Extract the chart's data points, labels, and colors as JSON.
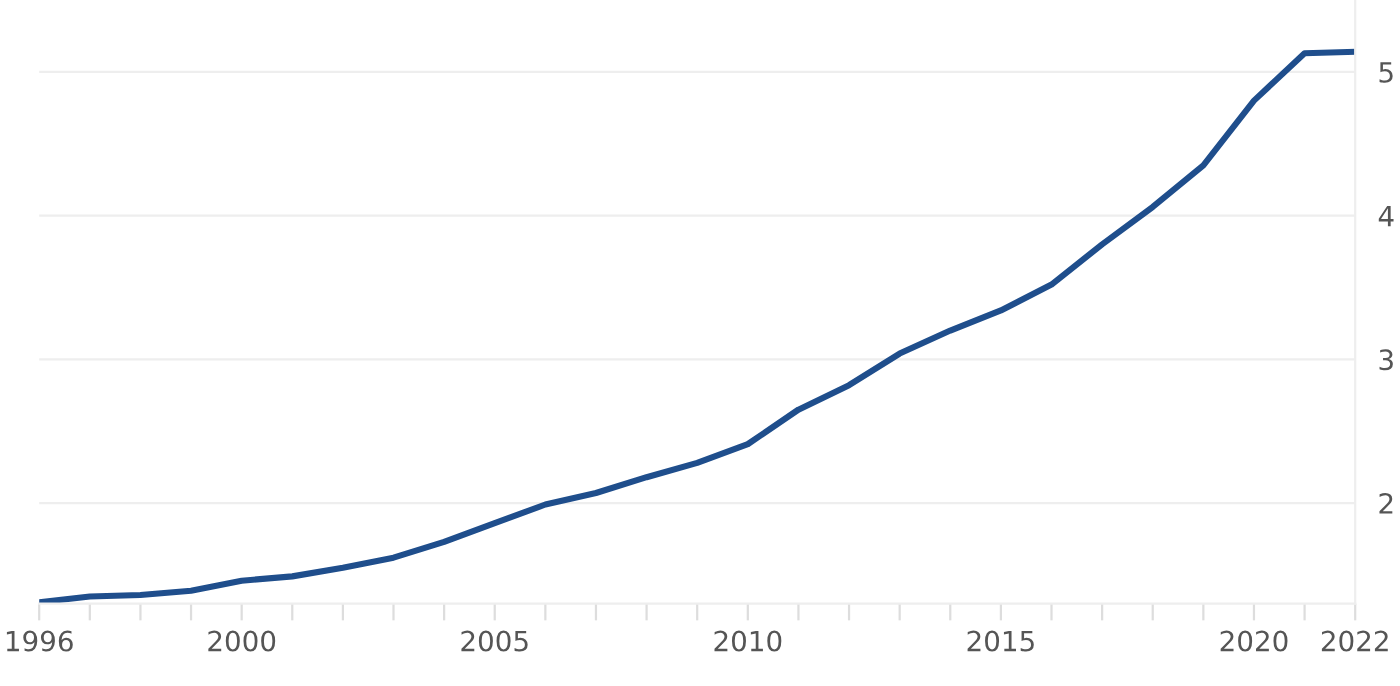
{
  "chart_data": {
    "type": "line",
    "x": [
      1996,
      1997,
      1998,
      1999,
      2000,
      2001,
      2002,
      2003,
      2004,
      2005,
      2006,
      2007,
      2008,
      2009,
      2010,
      2011,
      2012,
      2013,
      2014,
      2015,
      2016,
      2017,
      2018,
      2019,
      2020,
      2021,
      2022
    ],
    "series": [
      {
        "color": "#1f4e8c",
        "values": [
          1.31,
          1.35,
          1.36,
          1.39,
          1.46,
          1.49,
          1.55,
          1.62,
          1.73,
          1.86,
          1.99,
          2.07,
          2.18,
          2.28,
          2.41,
          2.65,
          2.82,
          3.04,
          3.2,
          3.34,
          3.52,
          3.8,
          4.06,
          4.35,
          4.8,
          5.13,
          5.14
        ]
      }
    ],
    "xlim": [
      1996,
      2022
    ],
    "ylim": [
      1.3,
      5.5
    ],
    "xticks": [
      1996,
      {
        "value": 1997,
        "label": null
      },
      {
        "value": 1998,
        "label": null
      },
      {
        "value": 1999,
        "label": null
      },
      2000,
      {
        "value": 2001,
        "label": null
      },
      {
        "value": 2002,
        "label": null
      },
      {
        "value": 2003,
        "label": null
      },
      {
        "value": 2004,
        "label": null
      },
      2005,
      {
        "value": 2006,
        "label": null
      },
      {
        "value": 2007,
        "label": null
      },
      {
        "value": 2008,
        "label": null
      },
      {
        "value": 2009,
        "label": null
      },
      2010,
      {
        "value": 2011,
        "label": null
      },
      {
        "value": 2012,
        "label": null
      },
      {
        "value": 2013,
        "label": null
      },
      {
        "value": 2014,
        "label": null
      },
      2015,
      {
        "value": 2016,
        "label": null
      },
      {
        "value": 2017,
        "label": null
      },
      {
        "value": 2018,
        "label": null
      },
      {
        "value": 2019,
        "label": null
      },
      2020,
      {
        "value": 2021,
        "label": null
      },
      2022
    ],
    "yticks": [
      2,
      3,
      4,
      5
    ],
    "grid": "y",
    "legend": false,
    "marker": "none",
    "line_style": "solid"
  }
}
